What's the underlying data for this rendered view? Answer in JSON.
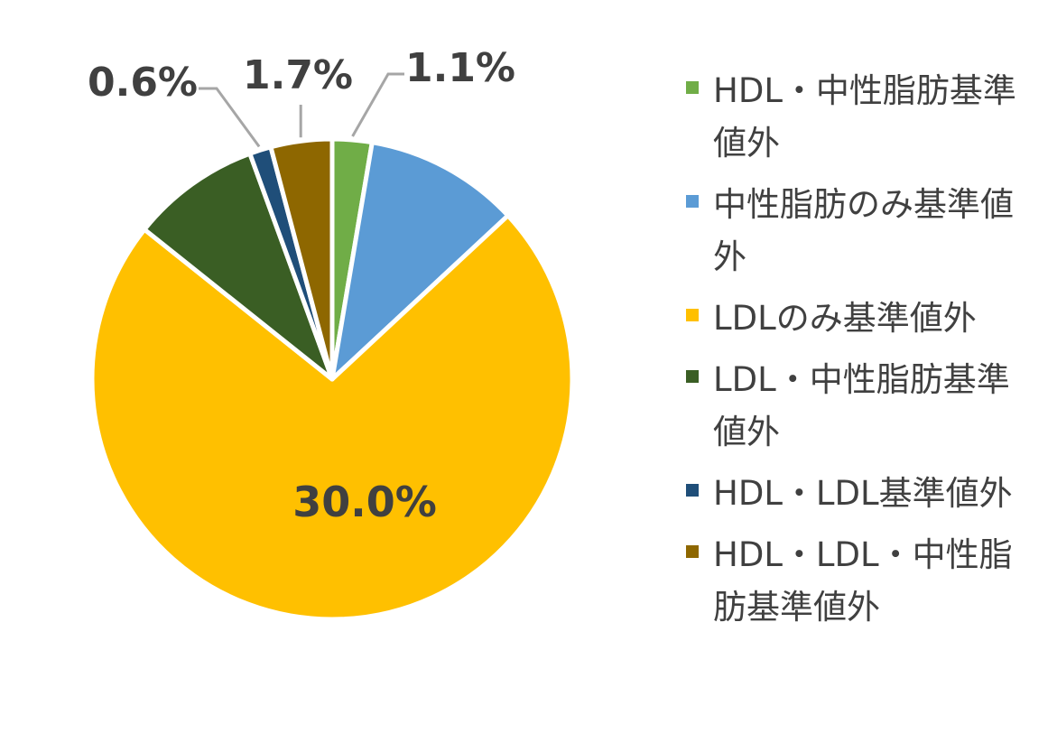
{
  "chart_data": {
    "type": "pie",
    "title": "",
    "start_angle_deg": 0,
    "direction": "clockwise",
    "slices": [
      {
        "label": "HDL・中性脂肪基準値外",
        "value": 1.1,
        "data_label": "1.1%",
        "color": "#70AD47"
      },
      {
        "label": "中性脂肪のみ基準値外",
        "value": 4.3,
        "data_label": "",
        "color": "#5B9BD5"
      },
      {
        "label": "LDLのみ基準値外",
        "value": 30.0,
        "data_label": "30.0%",
        "color": "#FFC000"
      },
      {
        "label": "LDL・中性脂肪基準値外",
        "value": 3.6,
        "data_label": "",
        "color": "#3A5E24"
      },
      {
        "label": "HDL・LDL基準値外",
        "value": 0.6,
        "data_label": "0.6%",
        "color": "#1F4E79"
      },
      {
        "label": "HDL・LDL・中性脂肪基準値外",
        "value": 1.7,
        "data_label": "1.7%",
        "color": "#8E6700"
      }
    ],
    "legend_position": "right"
  }
}
